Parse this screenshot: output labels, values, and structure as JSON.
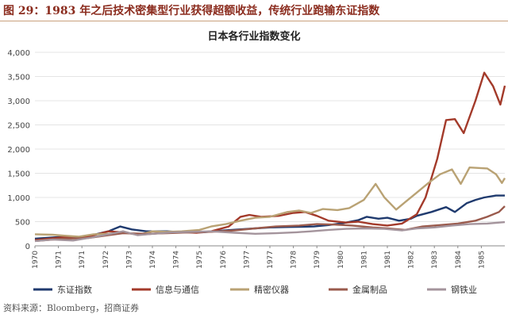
{
  "figure": {
    "title": "图 29：1983 年之后技术密集型行业获得超额收益，传统行业跑输东证指数",
    "source": "资料来源：Bloomberg，招商证券"
  },
  "chart_data": {
    "type": "line",
    "title": "日本各行业指数变化",
    "xlabel": "",
    "ylabel": "",
    "ylim": [
      0,
      4000
    ],
    "xlim": [
      1970,
      1986
    ],
    "yticks": [
      0,
      500,
      1000,
      1500,
      2000,
      2500,
      3000,
      3500,
      4000
    ],
    "ytick_labels": [
      "0",
      "500",
      "1,000",
      "1,500",
      "2,000",
      "2,500",
      "3,000",
      "3,500",
      "4,000"
    ],
    "xticks": [
      1970,
      1970.8,
      1971.6,
      1972.4,
      1973.2,
      1974,
      1974.8,
      1975.6,
      1976.4,
      1977.2,
      1978,
      1978.8,
      1979.6,
      1980.4,
      1981.2,
      1982,
      1982.8,
      1983.6,
      1984.4,
      1985.2
    ],
    "xtick_labels": [
      "1970",
      "1971",
      "1971",
      "1972",
      "1973",
      "1974",
      "1974",
      "1975",
      "1976",
      "1977",
      "1977",
      "1978",
      "1979",
      "1980",
      "1981",
      "1981",
      "1982",
      "1983",
      "1984",
      "1985"
    ],
    "grid": "horizontal",
    "legend_position": "bottom",
    "series": [
      {
        "name": "东证指数",
        "color": "#1f3a6e",
        "points": [
          [
            1970,
            150
          ],
          [
            1971,
            190
          ],
          [
            1971.5,
            160
          ],
          [
            1972,
            230
          ],
          [
            1972.5,
            300
          ],
          [
            1972.9,
            400
          ],
          [
            1973.3,
            340
          ],
          [
            1973.8,
            300
          ],
          [
            1974.5,
            300
          ],
          [
            1975,
            280
          ],
          [
            1975.7,
            280
          ],
          [
            1976.5,
            320
          ],
          [
            1977.5,
            360
          ],
          [
            1978,
            380
          ],
          [
            1978.7,
            390
          ],
          [
            1979.5,
            400
          ],
          [
            1980,
            430
          ],
          [
            1980.5,
            470
          ],
          [
            1981,
            530
          ],
          [
            1981.3,
            600
          ],
          [
            1981.7,
            560
          ],
          [
            1982,
            580
          ],
          [
            1982.4,
            520
          ],
          [
            1982.8,
            560
          ],
          [
            1983,
            620
          ],
          [
            1983.5,
            700
          ],
          [
            1984,
            800
          ],
          [
            1984.3,
            700
          ],
          [
            1984.7,
            880
          ],
          [
            1985,
            950
          ],
          [
            1985.3,
            1000
          ],
          [
            1985.7,
            1040
          ],
          [
            1986,
            1040
          ]
        ]
      },
      {
        "name": "信息与通信",
        "color": "#a33a2a",
        "points": [
          [
            1970,
            120
          ],
          [
            1971,
            180
          ],
          [
            1971.5,
            150
          ],
          [
            1972,
            220
          ],
          [
            1972.5,
            300
          ],
          [
            1973,
            280
          ],
          [
            1973.5,
            230
          ],
          [
            1974,
            250
          ],
          [
            1974.8,
            290
          ],
          [
            1975.5,
            270
          ],
          [
            1976,
            300
          ],
          [
            1976.6,
            400
          ],
          [
            1977,
            600
          ],
          [
            1977.3,
            640
          ],
          [
            1977.7,
            600
          ],
          [
            1978.3,
            620
          ],
          [
            1978.8,
            680
          ],
          [
            1979.2,
            700
          ],
          [
            1979.6,
            620
          ],
          [
            1980,
            520
          ],
          [
            1980.6,
            480
          ],
          [
            1981,
            500
          ],
          [
            1981.5,
            450
          ],
          [
            1982,
            420
          ],
          [
            1982.5,
            460
          ],
          [
            1983,
            650
          ],
          [
            1983.3,
            1000
          ],
          [
            1983.7,
            1800
          ],
          [
            1984,
            2600
          ],
          [
            1984.3,
            2620
          ],
          [
            1984.6,
            2330
          ],
          [
            1985,
            3000
          ],
          [
            1985.3,
            3580
          ],
          [
            1985.6,
            3300
          ],
          [
            1985.85,
            2920
          ],
          [
            1986,
            3310
          ]
        ]
      },
      {
        "name": "精密仪器",
        "color": "#b9a274",
        "points": [
          [
            1970,
            240
          ],
          [
            1970.6,
            230
          ],
          [
            1971,
            210
          ],
          [
            1971.5,
            190
          ],
          [
            1972,
            240
          ],
          [
            1972.5,
            250
          ],
          [
            1973,
            270
          ],
          [
            1973.6,
            240
          ],
          [
            1974,
            300
          ],
          [
            1974.5,
            290
          ],
          [
            1975,
            300
          ],
          [
            1975.6,
            330
          ],
          [
            1976,
            400
          ],
          [
            1976.5,
            450
          ],
          [
            1977,
            520
          ],
          [
            1977.5,
            580
          ],
          [
            1978,
            600
          ],
          [
            1978.6,
            700
          ],
          [
            1979,
            730
          ],
          [
            1979.4,
            680
          ],
          [
            1979.8,
            760
          ],
          [
            1980.3,
            740
          ],
          [
            1980.7,
            780
          ],
          [
            1981.2,
            950
          ],
          [
            1981.6,
            1280
          ],
          [
            1981.9,
            1000
          ],
          [
            1982.3,
            750
          ],
          [
            1982.6,
            900
          ],
          [
            1983,
            1100
          ],
          [
            1983.4,
            1300
          ],
          [
            1983.8,
            1480
          ],
          [
            1984.2,
            1580
          ],
          [
            1984.5,
            1280
          ],
          [
            1984.8,
            1620
          ],
          [
            1985.1,
            1610
          ],
          [
            1985.4,
            1600
          ],
          [
            1985.7,
            1480
          ],
          [
            1985.9,
            1300
          ],
          [
            1986,
            1400
          ]
        ]
      },
      {
        "name": "金属制品",
        "color": "#9a5a4c",
        "points": [
          [
            1970,
            100
          ],
          [
            1971,
            150
          ],
          [
            1971.8,
            160
          ],
          [
            1972.5,
            220
          ],
          [
            1973,
            260
          ],
          [
            1973.8,
            250
          ],
          [
            1974.5,
            260
          ],
          [
            1975.3,
            280
          ],
          [
            1976,
            290
          ],
          [
            1976.8,
            320
          ],
          [
            1977.5,
            360
          ],
          [
            1978.2,
            400
          ],
          [
            1979,
            420
          ],
          [
            1979.6,
            450
          ],
          [
            1980.2,
            440
          ],
          [
            1980.8,
            420
          ],
          [
            1981.5,
            380
          ],
          [
            1982,
            360
          ],
          [
            1982.6,
            330
          ],
          [
            1983.2,
            400
          ],
          [
            1983.8,
            430
          ],
          [
            1984.4,
            460
          ],
          [
            1985,
            520
          ],
          [
            1985.4,
            600
          ],
          [
            1985.8,
            700
          ],
          [
            1986,
            820
          ]
        ]
      },
      {
        "name": "钢铁业",
        "color": "#a4949c",
        "points": [
          [
            1970,
            100
          ],
          [
            1970.6,
            130
          ],
          [
            1971.3,
            110
          ],
          [
            1972,
            180
          ],
          [
            1972.6,
            250
          ],
          [
            1973,
            300
          ],
          [
            1973.5,
            220
          ],
          [
            1974,
            250
          ],
          [
            1974.7,
            280
          ],
          [
            1975.4,
            290
          ],
          [
            1976,
            300
          ],
          [
            1976.8,
            270
          ],
          [
            1977.5,
            250
          ],
          [
            1978.2,
            260
          ],
          [
            1978.9,
            280
          ],
          [
            1979.4,
            300
          ],
          [
            1980,
            330
          ],
          [
            1980.6,
            350
          ],
          [
            1981.3,
            360
          ],
          [
            1981.9,
            350
          ],
          [
            1982.5,
            320
          ],
          [
            1983,
            360
          ],
          [
            1983.6,
            380
          ],
          [
            1984.2,
            420
          ],
          [
            1984.8,
            450
          ],
          [
            1985.4,
            460
          ],
          [
            1986,
            490
          ]
        ]
      }
    ]
  }
}
